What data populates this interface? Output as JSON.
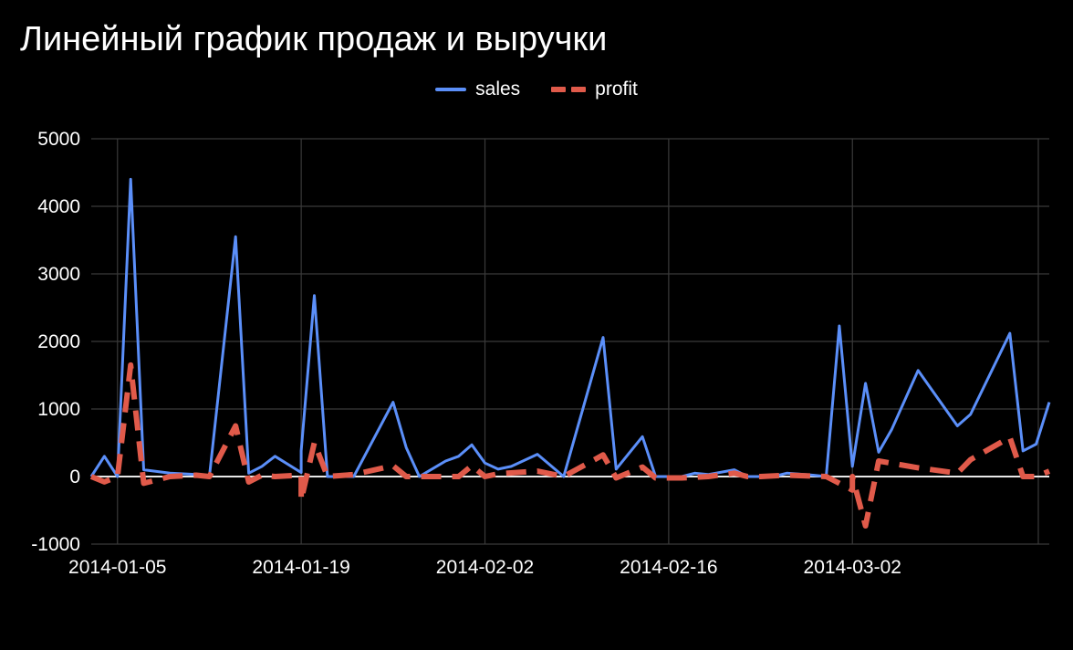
{
  "chart_data": {
    "type": "line",
    "title": "Линейный график продаж и выручки",
    "x_tick_labels": [
      "2014-01-05",
      "2014-01-19",
      "2014-02-02",
      "2014-02-16",
      "2014-03-02"
    ],
    "y_tick_labels": [
      "5000",
      "4000",
      "3000",
      "2000",
      "1000",
      "0",
      "-1000"
    ],
    "ylim": [
      -1000,
      5000
    ],
    "xlim": [
      "2014-01-03",
      "2014-03-17"
    ],
    "grid": true,
    "legend_position": "top-center",
    "series": [
      {
        "name": "sales",
        "color": "#5b8ff9",
        "style": "solid",
        "points": [
          [
            "2014-01-03",
            0
          ],
          [
            "2014-01-04",
            300
          ],
          [
            "2014-01-05",
            0
          ],
          [
            "2014-01-06",
            4400
          ],
          [
            "2014-01-07",
            100
          ],
          [
            "2014-01-09",
            50
          ],
          [
            "2014-01-11",
            30
          ],
          [
            "2014-01-12",
            0
          ],
          [
            "2014-01-14",
            3550
          ],
          [
            "2014-01-15",
            50
          ],
          [
            "2014-01-16",
            150
          ],
          [
            "2014-01-17",
            300
          ],
          [
            "2014-01-19",
            60
          ],
          [
            "2014-01-19",
            380
          ],
          [
            "2014-01-20",
            2680
          ],
          [
            "2014-01-21",
            0
          ],
          [
            "2014-01-23",
            0
          ],
          [
            "2014-01-26",
            1100
          ],
          [
            "2014-01-27",
            430
          ],
          [
            "2014-01-28",
            0
          ],
          [
            "2014-01-30",
            230
          ],
          [
            "2014-01-31",
            300
          ],
          [
            "2014-02-01",
            470
          ],
          [
            "2014-02-02",
            200
          ],
          [
            "2014-02-03",
            110
          ],
          [
            "2014-02-04",
            150
          ],
          [
            "2014-02-06",
            330
          ],
          [
            "2014-02-08",
            0
          ],
          [
            "2014-02-11",
            2060
          ],
          [
            "2014-02-12",
            110
          ],
          [
            "2014-02-14",
            590
          ],
          [
            "2014-02-15",
            0
          ],
          [
            "2014-02-17",
            0
          ],
          [
            "2014-02-18",
            50
          ],
          [
            "2014-02-19",
            30
          ],
          [
            "2014-02-21",
            100
          ],
          [
            "2014-02-22",
            0
          ],
          [
            "2014-02-24",
            0
          ],
          [
            "2014-02-25",
            50
          ],
          [
            "2014-02-27",
            20
          ],
          [
            "2014-02-28",
            0
          ],
          [
            "2014-03-01",
            2230
          ],
          [
            "2014-03-02",
            150
          ],
          [
            "2014-03-03",
            1380
          ],
          [
            "2014-03-04",
            360
          ],
          [
            "2014-03-05",
            700
          ],
          [
            "2014-03-07",
            1570
          ],
          [
            "2014-03-10",
            750
          ],
          [
            "2014-03-11",
            920
          ],
          [
            "2014-03-14",
            2120
          ],
          [
            "2014-03-15",
            380
          ],
          [
            "2014-03-16",
            480
          ],
          [
            "2014-03-17",
            1100
          ]
        ]
      },
      {
        "name": "profit",
        "color": "#e05a4a",
        "style": "dashed",
        "points": [
          [
            "2014-01-03",
            0
          ],
          [
            "2014-01-04",
            -80
          ],
          [
            "2014-01-05",
            0
          ],
          [
            "2014-01-06",
            1650
          ],
          [
            "2014-01-07",
            -100
          ],
          [
            "2014-01-09",
            0
          ],
          [
            "2014-01-11",
            20
          ],
          [
            "2014-01-12",
            0
          ],
          [
            "2014-01-14",
            750
          ],
          [
            "2014-01-15",
            -80
          ],
          [
            "2014-01-16",
            20
          ],
          [
            "2014-01-17",
            0
          ],
          [
            "2014-01-19",
            20
          ],
          [
            "2014-01-19",
            -350
          ],
          [
            "2014-01-20",
            500
          ],
          [
            "2014-01-21",
            0
          ],
          [
            "2014-01-23",
            30
          ],
          [
            "2014-01-26",
            160
          ],
          [
            "2014-01-27",
            0
          ],
          [
            "2014-01-30",
            0
          ],
          [
            "2014-01-31",
            0
          ],
          [
            "2014-02-01",
            160
          ],
          [
            "2014-02-02",
            0
          ],
          [
            "2014-02-03",
            40
          ],
          [
            "2014-02-06",
            80
          ],
          [
            "2014-02-08",
            0
          ],
          [
            "2014-02-11",
            320
          ],
          [
            "2014-02-12",
            -20
          ],
          [
            "2014-02-14",
            140
          ],
          [
            "2014-02-15",
            -20
          ],
          [
            "2014-02-17",
            -20
          ],
          [
            "2014-02-19",
            0
          ],
          [
            "2014-02-21",
            50
          ],
          [
            "2014-02-22",
            0
          ],
          [
            "2014-02-23",
            0
          ],
          [
            "2014-02-25",
            20
          ],
          [
            "2014-02-28",
            0
          ],
          [
            "2014-03-02",
            -200
          ],
          [
            "2014-03-02",
            0
          ],
          [
            "2014-03-03",
            -730
          ],
          [
            "2014-03-04",
            230
          ],
          [
            "2014-03-07",
            130
          ],
          [
            "2014-03-10",
            50
          ],
          [
            "2014-03-11",
            250
          ],
          [
            "2014-03-14",
            580
          ],
          [
            "2014-03-15",
            0
          ],
          [
            "2014-03-16",
            0
          ],
          [
            "2014-03-17",
            80
          ]
        ]
      }
    ]
  }
}
